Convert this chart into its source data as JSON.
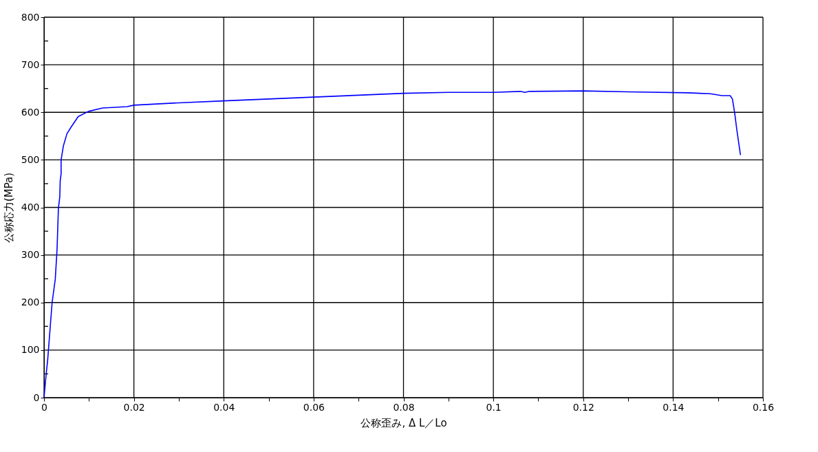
{
  "chart_data": {
    "type": "line",
    "xlabel": "公称歪み, Δ L／Lo",
    "ylabel": "公称応力(MPa)",
    "xlim": [
      0,
      0.16
    ],
    "ylim": [
      0,
      800
    ],
    "xticks": [
      0,
      {
        "value": 0.01,
        "label": null
      },
      0.02,
      {
        "value": 0.03,
        "label": null
      },
      0.04,
      {
        "value": 0.05,
        "label": null
      },
      0.06,
      {
        "value": 0.07,
        "label": null
      },
      0.08,
      {
        "value": 0.09,
        "label": null
      },
      0.1,
      {
        "value": 0.11,
        "label": null
      },
      0.12,
      {
        "value": 0.13,
        "label": null
      },
      0.14,
      {
        "value": 0.15,
        "label": null
      },
      0.16
    ],
    "yticks": [
      0,
      {
        "value": 50,
        "label": null
      },
      100,
      {
        "value": 150,
        "label": null
      },
      200,
      {
        "value": 250,
        "label": null
      },
      300,
      {
        "value": 350,
        "label": null
      },
      400,
      {
        "value": 450,
        "label": null
      },
      500,
      {
        "value": 550,
        "label": null
      },
      600,
      {
        "value": 650,
        "label": null
      },
      700,
      {
        "value": 750,
        "label": null
      },
      800
    ],
    "grid": true,
    "marker": "none",
    "line_style": "solid",
    "series": [
      {
        "color": "#0000ff",
        "x": [
          0,
          0.0005,
          0.0008,
          0.0018,
          0.0025,
          0.0029,
          0.0032,
          0.0035,
          0.0036,
          0.0038,
          0.0038,
          0.0043,
          0.0051,
          0.0061,
          0.0076,
          0.0099,
          0.013,
          0.0185,
          0.02,
          0.03,
          0.04,
          0.05,
          0.06,
          0.07,
          0.08,
          0.09,
          0.1,
          0.106,
          0.107,
          0.108,
          0.12,
          0.13,
          0.1433,
          0.1483,
          0.1509,
          0.1527,
          0.1532,
          0.1537,
          0.1542,
          0.155
        ],
        "values": [
          0,
          52,
          78,
          200,
          249,
          312,
          398,
          422,
          456,
          471,
          500,
          529,
          555,
          570,
          591,
          602,
          609,
          612,
          615,
          620,
          624,
          628,
          632,
          636,
          640,
          642,
          642,
          644,
          642,
          644,
          645,
          643,
          641,
          639,
          635,
          635,
          628,
          599,
          562,
          510
        ]
      }
    ]
  }
}
